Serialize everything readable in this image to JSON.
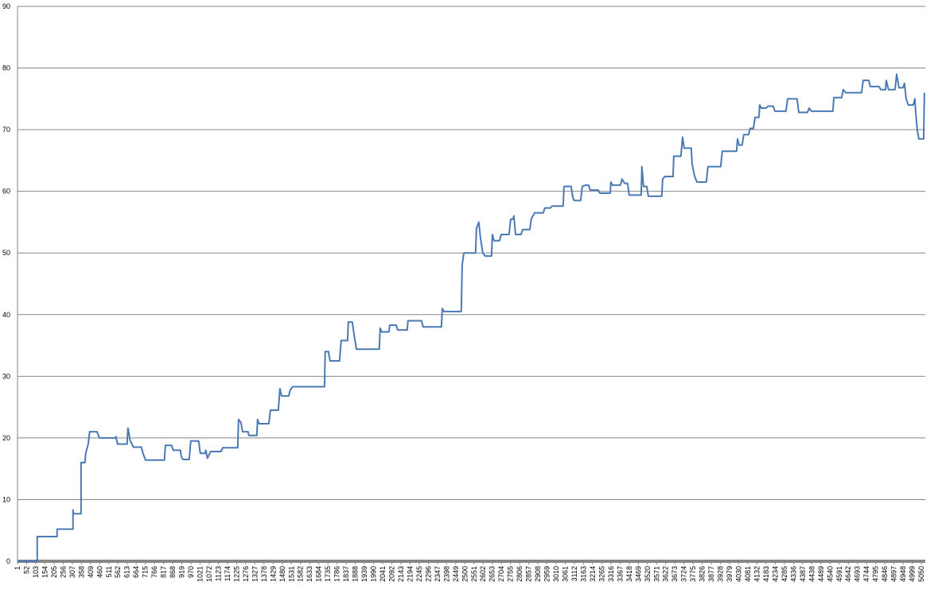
{
  "chart_data": {
    "type": "line",
    "color": "#4a7ab5",
    "grid": true,
    "xlim": [
      1,
      5072
    ],
    "ylim": [
      0,
      90
    ],
    "yticks": [
      0,
      10,
      20,
      30,
      40,
      50,
      60,
      70,
      80,
      90
    ],
    "xticks": [
      1,
      52,
      103,
      154,
      205,
      256,
      307,
      358,
      409,
      460,
      511,
      562,
      613,
      664,
      715,
      766,
      817,
      868,
      919,
      970,
      1021,
      1072,
      1123,
      1174,
      1225,
      1276,
      1327,
      1378,
      1429,
      1480,
      1531,
      1582,
      1633,
      1684,
      1735,
      1786,
      1837,
      1888,
      1939,
      1990,
      2041,
      2092,
      2143,
      2194,
      2245,
      2296,
      2347,
      2398,
      2449,
      2500,
      2551,
      2602,
      2653,
      2704,
      2755,
      2806,
      2857,
      2908,
      2959,
      3010,
      3061,
      3112,
      3163,
      3214,
      3265,
      3316,
      3367,
      3418,
      3469,
      3520,
      3571,
      3622,
      3673,
      3724,
      3775,
      3826,
      3877,
      3928,
      3979,
      4030,
      4081,
      4132,
      4183,
      4234,
      4285,
      4336,
      4387,
      4438,
      4489,
      4540,
      4591,
      4642,
      4693,
      4744,
      4795,
      4846,
      4897,
      4948,
      4999,
      5050
    ],
    "x": [
      1,
      111,
      111,
      222,
      222,
      311,
      311,
      315,
      356,
      356,
      378,
      382,
      396,
      404,
      445,
      458,
      547,
      551,
      560,
      613,
      618,
      631,
      649,
      693,
      702,
      716,
      822,
      827,
      862,
      871,
      911,
      916,
      925,
      960,
      969,
      1013,
      1022,
      1049,
      1053,
      1062,
      1080,
      1138,
      1147,
      1231,
      1236,
      1249,
      1258,
      1289,
      1293,
      1338,
      1342,
      1351,
      1405,
      1414,
      1458,
      1467,
      1476,
      1516,
      1525,
      1538,
      1716,
      1720,
      1738,
      1747,
      1800,
      1809,
      1845,
      1849,
      1871,
      1880,
      1894,
      2022,
      2027,
      2036,
      2076,
      2080,
      2116,
      2125,
      2178,
      2182,
      2258,
      2267,
      2369,
      2374,
      2383,
      2480,
      2485,
      2494,
      2560,
      2565,
      2578,
      2587,
      2600,
      2614,
      2649,
      2654,
      2663,
      2694,
      2703,
      2747,
      2756,
      2769,
      2774,
      2783,
      2814,
      2823,
      2863,
      2871,
      2889,
      2938,
      2947,
      2978,
      2987,
      3049,
      3054,
      3094,
      3103,
      3111,
      3147,
      3156,
      3174,
      3191,
      3200,
      3245,
      3254,
      3312,
      3316,
      3325,
      3369,
      3378,
      3392,
      3409,
      3418,
      3485,
      3489,
      3498,
      3516,
      3525,
      3600,
      3605,
      3618,
      3663,
      3667,
      3707,
      3716,
      3725,
      3765,
      3769,
      3783,
      3796,
      3849,
      3858,
      3929,
      3938,
      4018,
      4023,
      4032,
      4049,
      4058,
      4085,
      4094,
      4112,
      4121,
      4143,
      4147,
      4156,
      4183,
      4192,
      4223,
      4232,
      4294,
      4303,
      4356,
      4365,
      4414,
      4423,
      4436,
      4556,
      4561,
      4605,
      4614,
      4627,
      4716,
      4725,
      4756,
      4765,
      4814,
      4823,
      4850,
      4854,
      4867,
      4903,
      4912,
      4925,
      4947,
      4956,
      4965,
      4978,
      5005,
      5014,
      5018,
      5027,
      5036,
      5063,
      5067
    ],
    "values": [
      0,
      0,
      4,
      4,
      5.2,
      5.2,
      8.3,
      7.7,
      7.7,
      16,
      16,
      17.5,
      19,
      21,
      21,
      20,
      20,
      20.2,
      19,
      19,
      21.6,
      19.5,
      18.5,
      18.5,
      17.5,
      16.4,
      16.4,
      18.8,
      18.8,
      18,
      18,
      17,
      16.5,
      16.5,
      19.5,
      19.5,
      17.5,
      17.5,
      18,
      16.7,
      17.8,
      17.8,
      18.4,
      18.4,
      23,
      22.5,
      21,
      21,
      20.4,
      20.4,
      23,
      22.3,
      22.3,
      24.5,
      24.5,
      28,
      26.8,
      26.8,
      27.8,
      28.3,
      28.3,
      34,
      34,
      32.5,
      32.5,
      35.8,
      35.8,
      38.8,
      38.8,
      37,
      34.4,
      34.4,
      37.8,
      37.2,
      37.2,
      38.3,
      38.3,
      37.5,
      37.5,
      39,
      39,
      38,
      38,
      41,
      40.5,
      40.5,
      48,
      50,
      50,
      54,
      55,
      52.5,
      50,
      49.5,
      49.5,
      53,
      52,
      52,
      53,
      53,
      55.5,
      55.5,
      56,
      53,
      53,
      53.8,
      53.8,
      55.5,
      56.5,
      56.5,
      57.3,
      57.3,
      57.6,
      57.6,
      60.8,
      60.8,
      59,
      58.5,
      58.5,
      60.8,
      61,
      61,
      60.2,
      60.2,
      59.7,
      59.7,
      61.5,
      61,
      61,
      62,
      61.3,
      61.3,
      59.4,
      59.4,
      64,
      60.8,
      60.8,
      59.2,
      59.2,
      62,
      62.4,
      62.4,
      65.7,
      65.7,
      68.8,
      67,
      67,
      64.5,
      62.5,
      61.5,
      61.5,
      64,
      64,
      66.5,
      66.5,
      68.5,
      67.5,
      67.5,
      69.2,
      69.2,
      70.2,
      70.2,
      72,
      72,
      74,
      73.5,
      73.5,
      73.8,
      73.8,
      73,
      73,
      75,
      75,
      72.8,
      72.8,
      73.5,
      73,
      73,
      75.2,
      75.2,
      76.5,
      76,
      76,
      78,
      78,
      77,
      77,
      76.5,
      76.5,
      78,
      76.5,
      76.5,
      79,
      76.8,
      76.8,
      77.5,
      75,
      74,
      74,
      75,
      73,
      70,
      68.5,
      68.5,
      76
    ]
  }
}
